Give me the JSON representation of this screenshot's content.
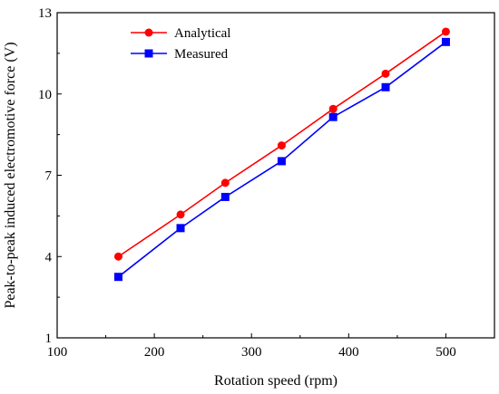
{
  "chart_data": {
    "type": "line",
    "title": "",
    "xlabel": "Rotation speed (rpm)",
    "ylabel": "Peak-to-peak induced electromotive force (V)",
    "xlim": [
      100,
      550
    ],
    "ylim": [
      1,
      13
    ],
    "xticks": [
      100,
      200,
      300,
      400,
      500
    ],
    "yticks": [
      1,
      4,
      7,
      10,
      13
    ],
    "grid": false,
    "legend_position": "top-left",
    "series": [
      {
        "name": "Analytical",
        "color": "#ff0000",
        "marker": "circle",
        "x": [
          163,
          227,
          273,
          331,
          384,
          438,
          500
        ],
        "y": [
          4.0,
          5.55,
          6.72,
          8.1,
          9.45,
          10.75,
          12.3
        ]
      },
      {
        "name": "Measured",
        "color": "#0000ff",
        "marker": "square",
        "x": [
          163,
          227,
          273,
          331,
          384,
          438,
          500
        ],
        "y": [
          3.25,
          5.05,
          6.2,
          7.52,
          9.15,
          10.25,
          11.92
        ]
      }
    ]
  }
}
